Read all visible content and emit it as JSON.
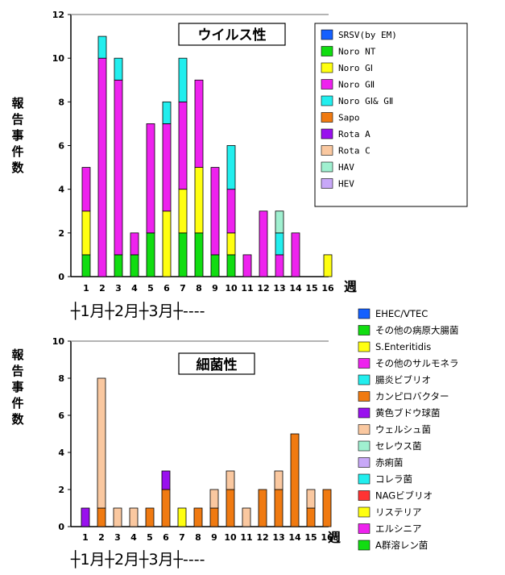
{
  "chart_data": [
    {
      "type": "bar",
      "stacked": true,
      "title": "ウイルス性",
      "ylabel": "報告事件数",
      "xlabel": "週",
      "ylim": [
        0,
        12
      ],
      "yticks": [
        0,
        2,
        4,
        6,
        8,
        10,
        12
      ],
      "categories": [
        "1",
        "2",
        "3",
        "4",
        "5",
        "6",
        "7",
        "8",
        "9",
        "10",
        "11",
        "12",
        "13",
        "14",
        "15",
        "16"
      ],
      "month_axis": "┼1月┼2月┼3月┼----",
      "legend_position": "right",
      "series": [
        {
          "name": "SRSV(by EM)",
          "color": "#1560ff",
          "values": [
            0,
            0,
            0,
            0,
            0,
            0,
            0,
            0,
            0,
            0,
            0,
            0,
            0,
            0,
            0,
            0
          ]
        },
        {
          "name": "Noro NT",
          "color": "#11dd11",
          "values": [
            1,
            0,
            1,
            1,
            2,
            0,
            2,
            2,
            1,
            1,
            0,
            0,
            0,
            0,
            0,
            0
          ]
        },
        {
          "name": "Noro GⅠ",
          "color": "#ffff11",
          "values": [
            2,
            0,
            0,
            0,
            0,
            3,
            2,
            3,
            0,
            1,
            0,
            0,
            0,
            0,
            0,
            1
          ]
        },
        {
          "name": "Noro GⅡ",
          "color": "#ee22ee",
          "values": [
            2,
            10,
            8,
            1,
            5,
            4,
            4,
            4,
            4,
            2,
            1,
            3,
            1,
            2,
            0,
            0
          ]
        },
        {
          "name": "Noro GⅠ& GⅡ",
          "color": "#22eeee",
          "values": [
            0,
            1,
            1,
            0,
            0,
            1,
            2,
            0,
            0,
            2,
            0,
            0,
            1,
            0,
            0,
            0
          ]
        },
        {
          "name": "Sapo",
          "color": "#f07a11",
          "values": [
            0,
            0,
            0,
            0,
            0,
            0,
            0,
            0,
            0,
            0,
            0,
            0,
            0,
            0,
            0,
            0
          ]
        },
        {
          "name": "Rota A",
          "color": "#9911ee",
          "values": [
            0,
            0,
            0,
            0,
            0,
            0,
            0,
            0,
            0,
            0,
            0,
            0,
            0,
            0,
            0,
            0
          ]
        },
        {
          "name": "Rota C",
          "color": "#fac8a0",
          "values": [
            0,
            0,
            0,
            0,
            0,
            0,
            0,
            0,
            0,
            0,
            0,
            0,
            0,
            0,
            0,
            0
          ]
        },
        {
          "name": "HAV",
          "color": "#a0f0d0",
          "values": [
            0,
            0,
            0,
            0,
            0,
            0,
            0,
            0,
            0,
            0,
            0,
            0,
            1,
            0,
            0,
            0
          ]
        },
        {
          "name": "HEV",
          "color": "#c8a8f8",
          "values": [
            0,
            0,
            0,
            0,
            0,
            0,
            0,
            0,
            0,
            0,
            0,
            0,
            0,
            0,
            0,
            0
          ]
        }
      ]
    },
    {
      "type": "bar",
      "stacked": true,
      "title": "細菌性",
      "ylabel": "報告事件数",
      "xlabel": "週",
      "ylim": [
        0,
        10
      ],
      "yticks": [
        0,
        2,
        4,
        6,
        8,
        10
      ],
      "categories": [
        "1",
        "2",
        "3",
        "4",
        "5",
        "6",
        "7",
        "8",
        "9",
        "10",
        "11",
        "12",
        "13",
        "14",
        "15",
        "16"
      ],
      "month_axis": "┼1月┼2月┼3月┼----",
      "legend_position": "right",
      "series": [
        {
          "name": "EHEC/VTEC",
          "color": "#1560ff",
          "values": [
            0,
            0,
            0,
            0,
            0,
            0,
            0,
            0,
            0,
            0,
            0,
            0,
            0,
            0,
            0,
            0
          ]
        },
        {
          "name": "その他の病原大腸菌",
          "color": "#11dd11",
          "values": [
            0,
            0,
            0,
            0,
            0,
            0,
            0,
            0,
            0,
            0,
            0,
            0,
            0,
            0,
            0,
            0
          ]
        },
        {
          "name": "S.Enteritidis",
          "color": "#ffff11",
          "values": [
            0,
            0,
            0,
            0,
            0,
            0,
            0,
            0,
            0,
            0,
            0,
            0,
            0,
            0,
            0,
            0
          ]
        },
        {
          "name": "その他のサルモネラ",
          "color": "#ee22ee",
          "values": [
            0,
            0,
            0,
            0,
            0,
            0,
            0,
            0,
            0,
            0,
            0,
            0,
            0,
            0,
            0,
            0
          ]
        },
        {
          "name": "腸炎ビブリオ",
          "color": "#22eeee",
          "values": [
            0,
            0,
            0,
            0,
            0,
            0,
            0,
            0,
            0,
            0,
            0,
            0,
            0,
            0,
            0,
            0
          ]
        },
        {
          "name": "カンピロバクター",
          "color": "#f07a11",
          "values": [
            0,
            1,
            0,
            0,
            1,
            2,
            0,
            1,
            1,
            2,
            0,
            2,
            2,
            5,
            1,
            2
          ]
        },
        {
          "name": "黄色ブドウ球菌",
          "color": "#9911ee",
          "values": [
            1,
            0,
            0,
            0,
            0,
            1,
            0,
            0,
            0,
            0,
            0,
            0,
            0,
            0,
            0,
            0
          ]
        },
        {
          "name": "ウェルシュ菌",
          "color": "#fac8a0",
          "values": [
            0,
            7,
            1,
            1,
            0,
            0,
            0,
            0,
            1,
            1,
            1,
            0,
            1,
            0,
            1,
            0
          ]
        },
        {
          "name": "セレウス菌",
          "color": "#a0f0d0",
          "values": [
            0,
            0,
            0,
            0,
            0,
            0,
            0,
            0,
            0,
            0,
            0,
            0,
            0,
            0,
            0,
            0
          ]
        },
        {
          "name": "赤痢菌",
          "color": "#c8a8f8",
          "values": [
            0,
            0,
            0,
            0,
            0,
            0,
            0,
            0,
            0,
            0,
            0,
            0,
            0,
            0,
            0,
            0
          ]
        },
        {
          "name": "コレラ菌",
          "color": "#22eeee",
          "values": [
            0,
            0,
            0,
            0,
            0,
            0,
            0,
            0,
            0,
            0,
            0,
            0,
            0,
            0,
            0,
            0
          ]
        },
        {
          "name": "NAGビブリオ",
          "color": "#ff3333",
          "values": [
            0,
            0,
            0,
            0,
            0,
            0,
            0,
            0,
            0,
            0,
            0,
            0,
            0,
            0,
            0,
            0
          ]
        },
        {
          "name": "リステリア",
          "color": "#ffff11",
          "values": [
            0,
            0,
            0,
            0,
            0,
            0,
            1,
            0,
            0,
            0,
            0,
            0,
            0,
            0,
            0,
            0
          ]
        },
        {
          "name": "エルシニア",
          "color": "#ee22ee",
          "values": [
            0,
            0,
            0,
            0,
            0,
            0,
            0,
            0,
            0,
            0,
            0,
            0,
            0,
            0,
            0,
            0
          ]
        },
        {
          "name": "A群溶レン菌",
          "color": "#11dd11",
          "values": [
            0,
            0,
            0,
            0,
            0,
            0,
            0,
            0,
            0,
            0,
            0,
            0,
            0,
            0,
            0,
            0
          ]
        }
      ]
    }
  ]
}
